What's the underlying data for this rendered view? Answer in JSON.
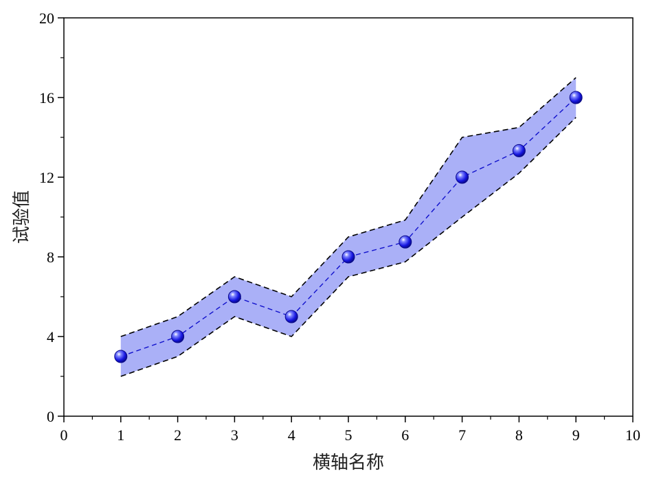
{
  "chart_data": {
    "type": "line",
    "title": "",
    "xlabel": "横轴名称",
    "ylabel": "试验值",
    "xlim": [
      0,
      10
    ],
    "ylim": [
      0,
      20
    ],
    "x_ticks": [
      0,
      1,
      2,
      3,
      4,
      5,
      6,
      7,
      8,
      9,
      10
    ],
    "y_ticks": [
      0,
      4,
      8,
      12,
      16,
      20
    ],
    "grid": false,
    "legend": "none",
    "series": [
      {
        "x": [
          1,
          2,
          3,
          4,
          5,
          6,
          7,
          8,
          9
        ],
        "values": [
          3,
          4,
          6,
          5,
          8,
          8.75,
          12,
          13.33,
          16
        ],
        "lower": [
          2,
          3,
          5,
          4,
          7,
          7.75,
          10,
          12.2,
          15
        ],
        "upper": [
          4,
          5,
          7,
          6,
          9,
          9.85,
          14,
          14.5,
          17
        ]
      }
    ],
    "colors": {
      "band_fill": "#aab0f7",
      "band_edge": "#000000",
      "line": "#1010cc",
      "marker": "#1515e0"
    }
  }
}
